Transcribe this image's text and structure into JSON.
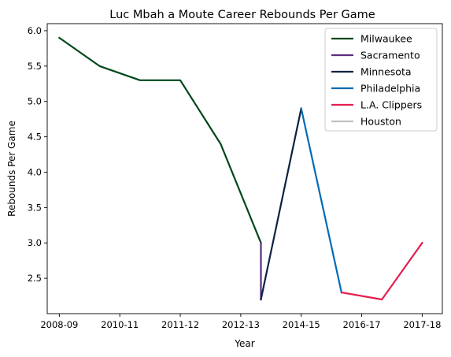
{
  "chart_data": {
    "type": "line",
    "title": "Luc Mbah a Moute Career Rebounds Per Game",
    "xlabel": "Year",
    "ylabel": "Rebounds Per Game",
    "x_ticks": [
      "2008-09",
      "2010-11",
      "2011-12",
      "2012-13",
      "2014-15",
      "2016-17",
      "2017-18"
    ],
    "y_ticks": [
      "2.5",
      "3.0",
      "3.5",
      "4.0",
      "4.5",
      "5.0",
      "5.5",
      "6.0"
    ],
    "xlim": [
      -0.3,
      9.5
    ],
    "ylim": [
      2.0,
      6.1
    ],
    "grid": false,
    "legend": "top-right",
    "series": [
      {
        "name": "Milwaukee",
        "color": "#00471b",
        "x": [
          0,
          1,
          2,
          3,
          4,
          5
        ],
        "y": [
          5.9,
          5.5,
          5.3,
          5.3,
          4.4,
          3.0
        ]
      },
      {
        "name": "Sacramento",
        "color": "#5a2d81",
        "x": [
          5,
          5
        ],
        "y": [
          3.0,
          2.2
        ]
      },
      {
        "name": "Minnesota",
        "color": "#0c2340",
        "x": [
          5,
          6
        ],
        "y": [
          2.2,
          4.9
        ]
      },
      {
        "name": "Philadelphia",
        "color": "#006bb6",
        "x": [
          6,
          7
        ],
        "y": [
          4.9,
          2.3
        ]
      },
      {
        "name": "L.A. Clippers",
        "color": "#e31f4f",
        "x": [
          7,
          8,
          9
        ],
        "y": [
          2.3,
          2.2,
          3.0
        ]
      },
      {
        "name": "Houston",
        "color": "#c0c0c0",
        "x": [],
        "y": []
      }
    ]
  }
}
